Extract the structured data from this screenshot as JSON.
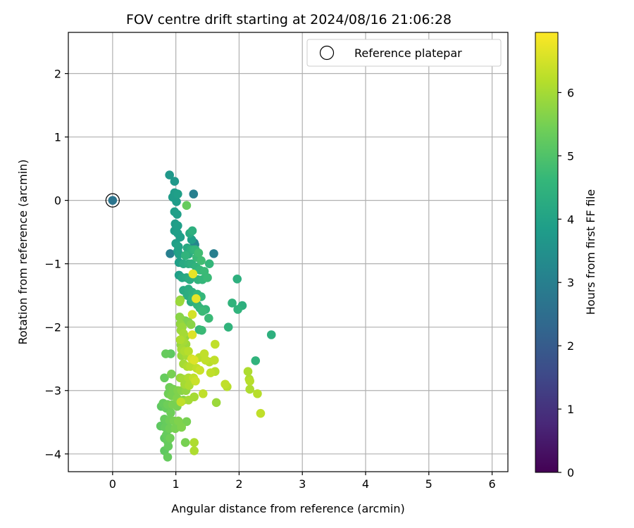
{
  "chart_data": {
    "type": "scatter",
    "title": "FOV centre drift starting at 2024/08/16 21:06:28",
    "xlabel": "Angular distance from reference (arcmin)",
    "ylabel": "Rotation from reference (arcmin)",
    "xlim": [
      -0.7,
      6.25
    ],
    "ylim": [
      -4.28,
      2.65
    ],
    "xticks": [
      0,
      1,
      2,
      3,
      4,
      5,
      6
    ],
    "yticks": [
      -4,
      -3,
      -2,
      -1,
      0,
      1,
      2
    ],
    "grid": true,
    "legend": {
      "placement": "top-right",
      "entries": [
        "Reference platepar"
      ]
    },
    "reference_point": {
      "x": 0,
      "y": 0,
      "hours": 2.7
    },
    "colorbar": {
      "label": "Hours from first FF file",
      "colormap": "viridis",
      "range": [
        0,
        6.95
      ],
      "ticks": [
        0,
        1,
        2,
        3,
        4,
        5,
        6
      ]
    },
    "colormap_stops": [
      "#440154",
      "#482878",
      "#3e4a89",
      "#31688e",
      "#26828e",
      "#1f9e89",
      "#35b779",
      "#6ece58",
      "#b5de2b",
      "#fde725"
    ],
    "series": [
      {
        "points": [
          [
            0.9,
            0.4,
            3.7
          ],
          [
            0.98,
            0.3,
            3.7
          ],
          [
            1.28,
            0.1,
            3.0
          ],
          [
            0.98,
            0.12,
            3.8
          ],
          [
            1.03,
            0.1,
            3.9
          ],
          [
            0.95,
            0.05,
            3.8
          ],
          [
            1.01,
            -0.02,
            3.8
          ],
          [
            0.98,
            -0.18,
            3.9
          ],
          [
            1.02,
            -0.22,
            3.9
          ],
          [
            1.17,
            -0.08,
            5.3
          ],
          [
            0.99,
            -0.37,
            3.8
          ],
          [
            1.03,
            -0.4,
            3.9
          ],
          [
            0.98,
            -0.48,
            3.8
          ],
          [
            1.03,
            -0.52,
            3.9
          ],
          [
            1.07,
            -0.58,
            3.9
          ],
          [
            1.22,
            -0.52,
            4.2
          ],
          [
            1.26,
            -0.48,
            4.4
          ],
          [
            1.25,
            -0.62,
            3.9
          ],
          [
            1.29,
            -0.67,
            3.2
          ],
          [
            1.3,
            -0.7,
            3.0
          ],
          [
            1.0,
            -0.68,
            3.9
          ],
          [
            1.04,
            -0.73,
            4.0
          ],
          [
            1.03,
            -0.8,
            3.9
          ],
          [
            0.91,
            -0.84,
            3.0
          ],
          [
            1.05,
            -0.85,
            4.0
          ],
          [
            1.18,
            -0.75,
            4.2
          ],
          [
            1.24,
            -0.78,
            4.4
          ],
          [
            1.28,
            -0.78,
            4.5
          ],
          [
            1.31,
            -0.78,
            4.6
          ],
          [
            1.36,
            -0.83,
            4.8
          ],
          [
            1.6,
            -0.84,
            3.0
          ],
          [
            1.2,
            -0.85,
            4.3
          ],
          [
            1.15,
            -0.87,
            4.5
          ],
          [
            1.33,
            -0.9,
            4.7
          ],
          [
            1.4,
            -0.95,
            4.8
          ],
          [
            1.53,
            -1.0,
            4.6
          ],
          [
            1.05,
            -0.98,
            3.9
          ],
          [
            1.12,
            -1.0,
            4.2
          ],
          [
            1.2,
            -1.0,
            4.3
          ],
          [
            1.25,
            -1.0,
            4.4
          ],
          [
            1.32,
            -1.05,
            4.5
          ],
          [
            1.38,
            -1.1,
            4.6
          ],
          [
            1.45,
            -1.12,
            4.7
          ],
          [
            1.27,
            -1.16,
            6.7
          ],
          [
            1.05,
            -1.18,
            3.9
          ],
          [
            1.1,
            -1.22,
            4.1
          ],
          [
            1.17,
            -1.22,
            4.2
          ],
          [
            1.22,
            -1.25,
            4.3
          ],
          [
            1.35,
            -1.25,
            4.5
          ],
          [
            1.42,
            -1.25,
            4.6
          ],
          [
            1.5,
            -1.22,
            4.7
          ],
          [
            1.97,
            -1.24,
            4.4
          ],
          [
            1.12,
            -1.42,
            4.2
          ],
          [
            1.2,
            -1.4,
            4.3
          ],
          [
            1.26,
            -1.45,
            4.4
          ],
          [
            1.34,
            -1.48,
            4.6
          ],
          [
            1.18,
            -1.5,
            4.3
          ],
          [
            1.26,
            -1.55,
            4.5
          ],
          [
            1.32,
            -1.55,
            6.7
          ],
          [
            1.4,
            -1.52,
            4.6
          ],
          [
            1.07,
            -1.57,
            5.8
          ],
          [
            1.06,
            -1.6,
            5.9
          ],
          [
            1.24,
            -1.6,
            4.3
          ],
          [
            1.34,
            -1.65,
            4.5
          ],
          [
            1.38,
            -1.7,
            4.6
          ],
          [
            1.42,
            -1.75,
            4.7
          ],
          [
            1.47,
            -1.72,
            4.6
          ],
          [
            1.26,
            -1.8,
            6.5
          ],
          [
            1.52,
            -1.86,
            4.7
          ],
          [
            1.89,
            -1.62,
            4.5
          ],
          [
            2.05,
            -1.66,
            4.4
          ],
          [
            1.98,
            -1.72,
            4.5
          ],
          [
            1.06,
            -1.84,
            5.7
          ],
          [
            1.09,
            -1.88,
            5.6
          ],
          [
            1.15,
            -1.9,
            5.5
          ],
          [
            1.2,
            -1.92,
            5.6
          ],
          [
            1.24,
            -1.96,
            5.7
          ],
          [
            1.07,
            -1.95,
            5.8
          ],
          [
            1.1,
            -2.0,
            5.9
          ],
          [
            1.83,
            -2.0,
            4.5
          ],
          [
            1.37,
            -2.04,
            4.6
          ],
          [
            1.41,
            -2.05,
            4.7
          ],
          [
            2.51,
            -2.12,
            4.4
          ],
          [
            1.08,
            -2.05,
            5.9
          ],
          [
            1.12,
            -2.1,
            6.0
          ],
          [
            1.26,
            -2.12,
            6.6
          ],
          [
            1.15,
            -2.15,
            5.8
          ],
          [
            1.07,
            -2.2,
            6.1
          ],
          [
            1.12,
            -2.22,
            6.0
          ],
          [
            1.08,
            -2.28,
            5.8
          ],
          [
            1.16,
            -2.27,
            5.9
          ],
          [
            1.62,
            -2.27,
            6.3
          ],
          [
            1.09,
            -2.35,
            6.0
          ],
          [
            1.14,
            -2.38,
            6.1
          ],
          [
            1.2,
            -2.38,
            6.2
          ],
          [
            0.84,
            -2.42,
            5.3
          ],
          [
            0.92,
            -2.42,
            5.2
          ],
          [
            1.09,
            -2.45,
            5.9
          ],
          [
            1.17,
            -2.45,
            6.0
          ],
          [
            1.45,
            -2.42,
            6.3
          ],
          [
            1.25,
            -2.5,
            6.5
          ],
          [
            1.29,
            -2.52,
            6.6
          ],
          [
            1.37,
            -2.48,
            6.2
          ],
          [
            1.47,
            -2.52,
            6.3
          ],
          [
            1.53,
            -2.55,
            6.2
          ],
          [
            1.61,
            -2.52,
            6.3
          ],
          [
            2.26,
            -2.53,
            4.5
          ],
          [
            1.12,
            -2.58,
            6.0
          ],
          [
            1.18,
            -2.62,
            6.1
          ],
          [
            1.23,
            -2.62,
            6.2
          ],
          [
            1.33,
            -2.65,
            6.3
          ],
          [
            1.38,
            -2.68,
            6.4
          ],
          [
            1.55,
            -2.72,
            6.3
          ],
          [
            1.62,
            -2.7,
            6.2
          ],
          [
            2.14,
            -2.7,
            6.1
          ],
          [
            0.93,
            -2.74,
            5.5
          ],
          [
            0.82,
            -2.8,
            5.3
          ],
          [
            1.07,
            -2.8,
            5.9
          ],
          [
            1.12,
            -2.82,
            6.0
          ],
          [
            1.2,
            -2.8,
            6.1
          ],
          [
            1.28,
            -2.8,
            6.3
          ],
          [
            1.31,
            -2.85,
            6.4
          ],
          [
            2.16,
            -2.82,
            6.1
          ],
          [
            2.17,
            -2.85,
            6.2
          ],
          [
            1.14,
            -2.9,
            6.0
          ],
          [
            1.21,
            -2.92,
            6.1
          ],
          [
            1.78,
            -2.9,
            6.3
          ],
          [
            1.81,
            -2.94,
            6.2
          ],
          [
            0.9,
            -2.95,
            5.4
          ],
          [
            0.96,
            -2.98,
            5.5
          ],
          [
            1.03,
            -3.0,
            5.6
          ],
          [
            1.09,
            -3.0,
            5.7
          ],
          [
            1.16,
            -3.0,
            5.8
          ],
          [
            2.17,
            -2.98,
            6.1
          ],
          [
            2.29,
            -3.05,
            6.2
          ],
          [
            1.43,
            -3.05,
            6.3
          ],
          [
            1.29,
            -3.1,
            6.0
          ],
          [
            0.88,
            -3.05,
            5.4
          ],
          [
            0.93,
            -3.08,
            5.5
          ],
          [
            1.02,
            -3.12,
            5.6
          ],
          [
            1.12,
            -3.15,
            5.7
          ],
          [
            1.2,
            -3.15,
            6.0
          ],
          [
            0.8,
            -3.2,
            5.3
          ],
          [
            0.87,
            -3.22,
            5.4
          ],
          [
            0.95,
            -3.22,
            5.5
          ],
          [
            1.08,
            -3.18,
            6.3
          ],
          [
            1.64,
            -3.19,
            5.9
          ],
          [
            0.77,
            -3.25,
            5.2
          ],
          [
            0.85,
            -3.28,
            5.3
          ],
          [
            1.02,
            -3.25,
            5.5
          ],
          [
            2.34,
            -3.36,
            6.3
          ],
          [
            0.92,
            -3.35,
            5.4
          ],
          [
            0.82,
            -3.45,
            5.3
          ],
          [
            0.9,
            -3.47,
            5.4
          ],
          [
            0.97,
            -3.48,
            5.5
          ],
          [
            1.04,
            -3.48,
            5.6
          ],
          [
            1.17,
            -3.49,
            5.5
          ],
          [
            0.76,
            -3.56,
            5.2
          ],
          [
            0.83,
            -3.58,
            5.3
          ],
          [
            0.9,
            -3.6,
            5.4
          ],
          [
            0.99,
            -3.6,
            5.5
          ],
          [
            1.09,
            -3.58,
            5.6
          ],
          [
            0.85,
            -3.7,
            5.3
          ],
          [
            0.91,
            -3.75,
            5.4
          ],
          [
            0.82,
            -3.75,
            5.2
          ],
          [
            0.87,
            -3.8,
            5.3
          ],
          [
            1.15,
            -3.82,
            5.5
          ],
          [
            1.29,
            -3.82,
            6.1
          ],
          [
            0.88,
            -3.88,
            5.3
          ],
          [
            0.82,
            -3.95,
            5.2
          ],
          [
            1.29,
            -3.95,
            6.1
          ],
          [
            0.87,
            -4.05,
            5.3
          ]
        ]
      }
    ]
  }
}
